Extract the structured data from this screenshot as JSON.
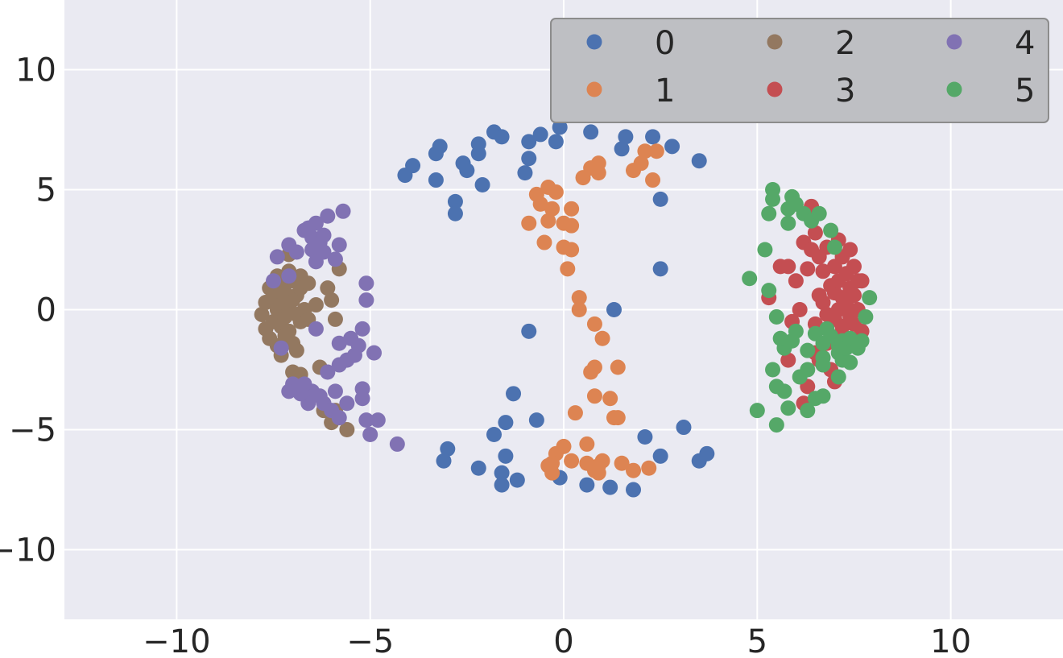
{
  "chart_data": {
    "type": "scatter",
    "title": "",
    "xlabel": "",
    "ylabel": "",
    "xlim": [
      -12.9,
      12.9
    ],
    "ylim": [
      -12.9,
      12.9
    ],
    "xticks": [
      -10,
      -5,
      0,
      5,
      10
    ],
    "yticks": [
      -10,
      -5,
      0,
      5,
      10
    ],
    "xtick_labels": [
      "−10",
      "−5",
      "0",
      "5",
      "10"
    ],
    "ytick_labels": [
      "−10",
      "−5",
      "0",
      "5",
      "10"
    ],
    "grid": true,
    "legend": {
      "placement": "top-right",
      "columns": 3
    },
    "colors": {
      "background": "#eaeaf2",
      "grid": "#ffffff",
      "legend_box": "#bebfc3",
      "legend_border": "#8c8c8c"
    },
    "series": [
      {
        "name": "0",
        "color": "#4c72b0",
        "points": [
          [
            -4.1,
            5.6
          ],
          [
            -3.9,
            6.0
          ],
          [
            -3.3,
            6.5
          ],
          [
            -3.2,
            6.8
          ],
          [
            -3.3,
            5.4
          ],
          [
            -2.8,
            4.5
          ],
          [
            -2.8,
            4.0
          ],
          [
            -2.6,
            6.1
          ],
          [
            -2.5,
            5.8
          ],
          [
            -2.2,
            6.5
          ],
          [
            -2.2,
            6.9
          ],
          [
            -2.1,
            5.2
          ],
          [
            -1.8,
            7.4
          ],
          [
            -1.6,
            7.2
          ],
          [
            -1.0,
            5.7
          ],
          [
            -0.9,
            6.3
          ],
          [
            -0.9,
            7.0
          ],
          [
            -0.6,
            7.3
          ],
          [
            -0.2,
            7.0
          ],
          [
            -0.1,
            7.6
          ],
          [
            0.7,
            7.4
          ],
          [
            1.5,
            6.7
          ],
          [
            1.6,
            7.2
          ],
          [
            2.3,
            7.2
          ],
          [
            2.8,
            6.8
          ],
          [
            3.5,
            6.2
          ],
          [
            2.5,
            4.6
          ],
          [
            2.5,
            1.7
          ],
          [
            1.3,
            0.0
          ],
          [
            -0.9,
            -0.9
          ],
          [
            -1.3,
            -3.5
          ],
          [
            -0.7,
            -4.6
          ],
          [
            -1.5,
            -4.7
          ],
          [
            -1.8,
            -5.2
          ],
          [
            -3.0,
            -5.8
          ],
          [
            -3.1,
            -6.3
          ],
          [
            -2.2,
            -6.6
          ],
          [
            -1.5,
            -6.1
          ],
          [
            -1.6,
            -6.8
          ],
          [
            -1.6,
            -7.3
          ],
          [
            -1.2,
            -7.1
          ],
          [
            -0.1,
            -7.0
          ],
          [
            0.6,
            -7.3
          ],
          [
            1.2,
            -7.4
          ],
          [
            1.8,
            -7.5
          ],
          [
            2.1,
            -5.3
          ],
          [
            2.5,
            -6.1
          ],
          [
            3.1,
            -4.9
          ],
          [
            3.5,
            -6.3
          ],
          [
            3.7,
            -6.0
          ]
        ]
      },
      {
        "name": "1",
        "color": "#dd8452",
        "points": [
          [
            0.5,
            5.5
          ],
          [
            0.7,
            5.9
          ],
          [
            0.9,
            5.7
          ],
          [
            0.9,
            6.1
          ],
          [
            1.8,
            5.8
          ],
          [
            2.0,
            6.1
          ],
          [
            2.1,
            6.6
          ],
          [
            2.3,
            5.4
          ],
          [
            2.4,
            6.6
          ],
          [
            -0.4,
            5.1
          ],
          [
            -0.7,
            4.8
          ],
          [
            -0.2,
            4.9
          ],
          [
            -0.6,
            4.4
          ],
          [
            -0.3,
            4.2
          ],
          [
            0.2,
            4.2
          ],
          [
            -0.4,
            3.7
          ],
          [
            0.0,
            3.6
          ],
          [
            0.2,
            3.5
          ],
          [
            -0.9,
            3.6
          ],
          [
            -0.5,
            2.8
          ],
          [
            0.0,
            2.6
          ],
          [
            0.2,
            2.5
          ],
          [
            0.1,
            1.7
          ],
          [
            0.4,
            0.5
          ],
          [
            0.4,
            0.0
          ],
          [
            0.8,
            -0.6
          ],
          [
            1.0,
            -1.2
          ],
          [
            0.8,
            -2.4
          ],
          [
            0.7,
            -2.6
          ],
          [
            1.4,
            -2.4
          ],
          [
            0.8,
            -3.6
          ],
          [
            1.2,
            -3.7
          ],
          [
            1.3,
            -4.5
          ],
          [
            1.4,
            -4.5
          ],
          [
            0.3,
            -4.3
          ],
          [
            0.0,
            -5.7
          ],
          [
            0.6,
            -5.6
          ],
          [
            -0.2,
            -6.0
          ],
          [
            -0.3,
            -6.4
          ],
          [
            -0.4,
            -6.5
          ],
          [
            -0.3,
            -6.8
          ],
          [
            0.2,
            -6.3
          ],
          [
            0.6,
            -6.4
          ],
          [
            0.8,
            -6.7
          ],
          [
            0.9,
            -6.5
          ],
          [
            1.0,
            -6.3
          ],
          [
            0.9,
            -6.8
          ],
          [
            1.5,
            -6.4
          ],
          [
            1.8,
            -6.7
          ],
          [
            2.2,
            -6.6
          ]
        ]
      },
      {
        "name": "2",
        "color": "#937860",
        "points": [
          [
            -7.8,
            -0.2
          ],
          [
            -7.7,
            0.3
          ],
          [
            -7.7,
            -0.8
          ],
          [
            -7.6,
            0.9
          ],
          [
            -7.6,
            -1.2
          ],
          [
            -7.5,
            0.5
          ],
          [
            -7.5,
            -0.5
          ],
          [
            -7.4,
            1.4
          ],
          [
            -7.4,
            0.0
          ],
          [
            -7.4,
            -1.5
          ],
          [
            -7.3,
            1.0
          ],
          [
            -7.3,
            0.2
          ],
          [
            -7.3,
            -0.7
          ],
          [
            -7.3,
            -1.9
          ],
          [
            -7.2,
            0.7
          ],
          [
            -7.2,
            -0.3
          ],
          [
            -7.2,
            -1.1
          ],
          [
            -7.1,
            2.3
          ],
          [
            -7.1,
            1.6
          ],
          [
            -7.1,
            0.0
          ],
          [
            -7.1,
            -0.9
          ],
          [
            -7.0,
            1.2
          ],
          [
            -7.0,
            0.4
          ],
          [
            -7.0,
            -1.4
          ],
          [
            -7.0,
            -2.6
          ],
          [
            -6.9,
            0.6
          ],
          [
            -6.9,
            -0.2
          ],
          [
            -6.9,
            -1.7
          ],
          [
            -6.8,
            1.4
          ],
          [
            -6.8,
            0.9
          ],
          [
            -6.8,
            -0.5
          ],
          [
            -6.8,
            -2.7
          ],
          [
            -6.7,
            0.0
          ],
          [
            -6.6,
            1.1
          ],
          [
            -6.6,
            -0.4
          ],
          [
            -6.4,
            0.2
          ],
          [
            -6.3,
            -2.4
          ],
          [
            -6.2,
            -4.2
          ],
          [
            -6.1,
            0.9
          ],
          [
            -6.0,
            0.4
          ],
          [
            -6.0,
            -4.7
          ],
          [
            -5.9,
            -0.4
          ],
          [
            -5.8,
            1.7
          ],
          [
            -5.9,
            -4.2
          ],
          [
            -5.6,
            -5.0
          ]
        ]
      },
      {
        "name": "3",
        "color": "#c44e52",
        "points": [
          [
            5.8,
            1.8
          ],
          [
            5.8,
            -2.1
          ],
          [
            5.9,
            -0.5
          ],
          [
            6.0,
            1.2
          ],
          [
            6.1,
            0.0
          ],
          [
            6.2,
            2.8
          ],
          [
            6.2,
            -3.9
          ],
          [
            6.3,
            1.7
          ],
          [
            6.3,
            -3.2
          ],
          [
            6.4,
            2.5
          ],
          [
            6.4,
            4.3
          ],
          [
            6.5,
            3.2
          ],
          [
            6.5,
            -0.6
          ],
          [
            6.6,
            2.2
          ],
          [
            6.6,
            0.6
          ],
          [
            6.7,
            1.6
          ],
          [
            6.7,
            0.3
          ],
          [
            6.8,
            2.6
          ],
          [
            6.8,
            -0.2
          ],
          [
            6.8,
            -1.4
          ],
          [
            6.9,
            1.0
          ],
          [
            6.9,
            -2.5
          ],
          [
            7.0,
            1.8
          ],
          [
            7.0,
            0.7
          ],
          [
            7.0,
            -0.4
          ],
          [
            7.0,
            -3.0
          ],
          [
            7.1,
            2.9
          ],
          [
            7.1,
            1.2
          ],
          [
            7.1,
            0.0
          ],
          [
            7.1,
            -1.1
          ],
          [
            7.2,
            2.2
          ],
          [
            7.2,
            0.5
          ],
          [
            7.2,
            -0.7
          ],
          [
            7.3,
            1.5
          ],
          [
            7.3,
            0.2
          ],
          [
            7.3,
            -1.5
          ],
          [
            7.4,
            2.5
          ],
          [
            7.4,
            0.9
          ],
          [
            7.4,
            -0.3
          ],
          [
            7.5,
            1.8
          ],
          [
            7.5,
            0.6
          ],
          [
            7.5,
            -0.6
          ],
          [
            7.6,
            1.2
          ],
          [
            7.6,
            0.0
          ],
          [
            7.7,
            -0.9
          ],
          [
            7.7,
            1.2
          ],
          [
            6.5,
            -1.8
          ],
          [
            6.6,
            -2.1
          ],
          [
            5.3,
            0.5
          ],
          [
            5.6,
            1.8
          ]
        ]
      },
      {
        "name": "4",
        "color": "#8172b3",
        "points": [
          [
            -7.4,
            2.2
          ],
          [
            -7.5,
            1.2
          ],
          [
            -7.1,
            1.4
          ],
          [
            -7.1,
            2.7
          ],
          [
            -6.9,
            2.4
          ],
          [
            -6.7,
            3.3
          ],
          [
            -6.6,
            3.4
          ],
          [
            -6.5,
            3.0
          ],
          [
            -6.5,
            2.5
          ],
          [
            -6.4,
            2.0
          ],
          [
            -6.4,
            3.6
          ],
          [
            -6.3,
            2.8
          ],
          [
            -6.2,
            3.1
          ],
          [
            -6.2,
            2.4
          ],
          [
            -6.1,
            3.9
          ],
          [
            -5.9,
            2.1
          ],
          [
            -5.8,
            2.7
          ],
          [
            -5.7,
            4.1
          ],
          [
            -5.1,
            1.1
          ],
          [
            -5.1,
            0.4
          ],
          [
            -5.2,
            -0.8
          ],
          [
            -5.5,
            -1.2
          ],
          [
            -5.3,
            -1.5
          ],
          [
            -4.9,
            -1.8
          ],
          [
            -5.4,
            -1.9
          ],
          [
            -5.6,
            -2.1
          ],
          [
            -5.8,
            -1.4
          ],
          [
            -5.8,
            -2.3
          ],
          [
            -6.1,
            -2.6
          ],
          [
            -6.4,
            -0.8
          ],
          [
            -6.5,
            -3.4
          ],
          [
            -6.6,
            -3.9
          ],
          [
            -6.7,
            -3.1
          ],
          [
            -6.8,
            -3.5
          ],
          [
            -6.9,
            -3.2
          ],
          [
            -7.0,
            -3.1
          ],
          [
            -7.1,
            -3.4
          ],
          [
            -6.3,
            -3.6
          ],
          [
            -6.2,
            -3.9
          ],
          [
            -6.0,
            -4.2
          ],
          [
            -5.9,
            -3.4
          ],
          [
            -5.6,
            -3.9
          ],
          [
            -5.8,
            -4.5
          ],
          [
            -5.2,
            -3.3
          ],
          [
            -5.2,
            -3.7
          ],
          [
            -5.1,
            -4.6
          ],
          [
            -4.8,
            -4.6
          ],
          [
            -5.0,
            -5.2
          ],
          [
            -4.3,
            -5.6
          ],
          [
            -7.3,
            -1.6
          ]
        ]
      },
      {
        "name": "5",
        "color": "#55a868",
        "points": [
          [
            4.8,
            1.3
          ],
          [
            5.0,
            -4.2
          ],
          [
            5.2,
            2.5
          ],
          [
            5.3,
            0.8
          ],
          [
            5.3,
            4.0
          ],
          [
            5.4,
            4.6
          ],
          [
            5.4,
            5.0
          ],
          [
            5.4,
            -2.5
          ],
          [
            5.5,
            -0.3
          ],
          [
            5.5,
            -3.2
          ],
          [
            5.5,
            -4.8
          ],
          [
            5.7,
            -1.6
          ],
          [
            5.7,
            -3.4
          ],
          [
            5.8,
            3.6
          ],
          [
            5.8,
            4.2
          ],
          [
            5.8,
            -4.1
          ],
          [
            5.9,
            4.7
          ],
          [
            5.9,
            -1.3
          ],
          [
            6.0,
            4.4
          ],
          [
            6.1,
            -2.8
          ],
          [
            6.2,
            4.0
          ],
          [
            6.3,
            -2.5
          ],
          [
            6.3,
            -4.2
          ],
          [
            6.3,
            -1.7
          ],
          [
            6.4,
            3.7
          ],
          [
            6.5,
            -3.7
          ],
          [
            6.5,
            -1.0
          ],
          [
            6.6,
            4.0
          ],
          [
            6.7,
            -2.0
          ],
          [
            6.7,
            -2.3
          ],
          [
            6.7,
            -3.6
          ],
          [
            6.7,
            -1.4
          ],
          [
            6.8,
            -0.8
          ],
          [
            6.9,
            -1.1
          ],
          [
            6.9,
            3.3
          ],
          [
            7.0,
            2.6
          ],
          [
            7.1,
            -2.8
          ],
          [
            7.1,
            -1.5
          ],
          [
            7.1,
            -1.8
          ],
          [
            7.2,
            -1.3
          ],
          [
            7.2,
            -2.1
          ],
          [
            7.3,
            -1.6
          ],
          [
            7.4,
            -1.2
          ],
          [
            7.4,
            -2.2
          ],
          [
            7.6,
            -1.6
          ],
          [
            7.7,
            -1.3
          ],
          [
            7.8,
            -0.3
          ],
          [
            7.9,
            0.5
          ],
          [
            6.0,
            -0.9
          ],
          [
            5.6,
            -1.2
          ]
        ]
      }
    ]
  }
}
